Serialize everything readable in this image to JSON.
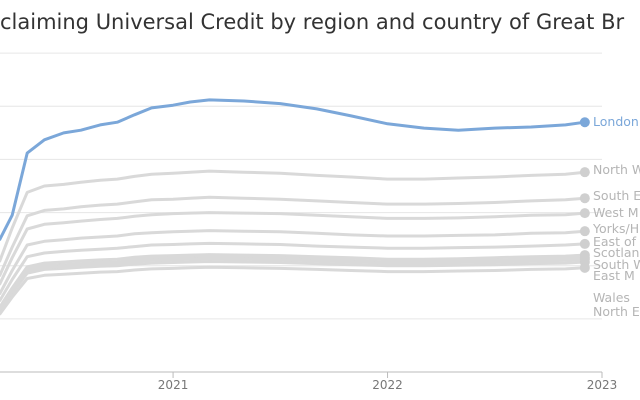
{
  "chart_data": {
    "type": "line",
    "title": "claiming Universal Credit by region and country of Great Br",
    "x": [
      2020.19,
      2020.25,
      2020.32,
      2020.4,
      2020.49,
      2020.57,
      2020.66,
      2020.74,
      2020.82,
      2020.9,
      2021.0,
      2021.08,
      2021.17,
      2021.33,
      2021.5,
      2021.67,
      2021.83,
      2022.0,
      2022.17,
      2022.33,
      2022.5,
      2022.67,
      2022.83,
      2022.92
    ],
    "xlim": [
      2020.193,
      2023
    ],
    "xticks": [
      2021,
      2022,
      2023
    ],
    "ylim": [
      0,
      7
    ],
    "yticks": [
      0,
      1,
      2,
      3,
      4,
      5,
      6
    ],
    "grid": true,
    "series": [
      {
        "name": "North W",
        "color": "#d9d9d9",
        "values": [
          2.07,
          2.71,
          3.38,
          3.5,
          3.53,
          3.57,
          3.61,
          3.63,
          3.68,
          3.72,
          3.74,
          3.76,
          3.78,
          3.76,
          3.74,
          3.7,
          3.67,
          3.63,
          3.63,
          3.65,
          3.67,
          3.7,
          3.72,
          3.76
        ]
      },
      {
        "name": "South E",
        "color": "#d9d9d9",
        "values": [
          1.8,
          2.35,
          2.94,
          3.04,
          3.07,
          3.11,
          3.14,
          3.16,
          3.2,
          3.24,
          3.25,
          3.27,
          3.29,
          3.27,
          3.25,
          3.22,
          3.19,
          3.16,
          3.16,
          3.17,
          3.19,
          3.22,
          3.24,
          3.27
        ]
      },
      {
        "name": "West M",
        "color": "#d9d9d9",
        "values": [
          1.64,
          2.15,
          2.69,
          2.78,
          2.81,
          2.84,
          2.87,
          2.89,
          2.93,
          2.96,
          2.98,
          2.99,
          3.0,
          2.99,
          2.98,
          2.95,
          2.92,
          2.89,
          2.89,
          2.9,
          2.92,
          2.95,
          2.96,
          2.99
        ]
      },
      {
        "name": "Yorks/H",
        "color": "#d9d9d9",
        "values": [
          1.46,
          1.91,
          2.39,
          2.46,
          2.49,
          2.52,
          2.54,
          2.56,
          2.6,
          2.62,
          2.64,
          2.65,
          2.66,
          2.65,
          2.64,
          2.61,
          2.58,
          2.56,
          2.56,
          2.57,
          2.58,
          2.61,
          2.62,
          2.65
        ]
      },
      {
        "name": "East of",
        "color": "#d9d9d9",
        "values": [
          1.33,
          1.74,
          2.17,
          2.24,
          2.27,
          2.29,
          2.31,
          2.33,
          2.36,
          2.39,
          2.4,
          2.41,
          2.42,
          2.41,
          2.4,
          2.37,
          2.35,
          2.33,
          2.33,
          2.34,
          2.35,
          2.37,
          2.39,
          2.41
        ]
      },
      {
        "name": "Scotlan",
        "color": "#d9d9d9",
        "values": [
          1.21,
          1.58,
          1.98,
          2.05,
          2.07,
          2.09,
          2.11,
          2.12,
          2.16,
          2.18,
          2.19,
          2.2,
          2.21,
          2.2,
          2.19,
          2.17,
          2.15,
          2.12,
          2.12,
          2.13,
          2.15,
          2.17,
          2.18,
          2.2
        ]
      },
      {
        "name": "South W",
        "color": "#d9d9d9",
        "values": [
          1.18,
          1.55,
          1.94,
          2.0,
          2.02,
          2.04,
          2.06,
          2.07,
          2.11,
          2.13,
          2.14,
          2.15,
          2.16,
          2.15,
          2.14,
          2.12,
          2.1,
          2.07,
          2.07,
          2.09,
          2.1,
          2.12,
          2.13,
          2.15
        ]
      },
      {
        "name": "East M",
        "color": "#d9d9d9",
        "values": [
          1.14,
          1.49,
          1.86,
          1.93,
          1.95,
          1.97,
          1.99,
          2.0,
          2.03,
          2.05,
          2.06,
          2.07,
          2.08,
          2.07,
          2.06,
          2.04,
          2.02,
          2.0,
          2.0,
          2.01,
          2.02,
          2.04,
          2.05,
          2.07
        ]
      },
      {
        "name": "Wales",
        "color": "#d9d9d9",
        "values": [
          1.08,
          1.41,
          1.76,
          1.82,
          1.84,
          1.86,
          1.88,
          1.89,
          1.92,
          1.94,
          1.95,
          1.96,
          1.97,
          1.96,
          1.95,
          1.93,
          1.91,
          1.89,
          1.89,
          1.9,
          1.91,
          1.93,
          1.94,
          1.96
        ]
      },
      {
        "name": "North E",
        "color": "#d9d9d9",
        "values": [
          1.17,
          1.53,
          1.91,
          1.97,
          1.99,
          2.01,
          2.04,
          2.05,
          2.08,
          2.1,
          2.11,
          2.12,
          2.13,
          2.12,
          2.11,
          2.09,
          2.07,
          2.05,
          2.05,
          2.06,
          2.07,
          2.09,
          2.1,
          2.12
        ]
      },
      {
        "name": "London",
        "color": "#7ba7d9",
        "values": [
          2.48,
          2.95,
          4.12,
          4.37,
          4.5,
          4.55,
          4.65,
          4.7,
          4.84,
          4.97,
          5.02,
          5.08,
          5.12,
          5.1,
          5.05,
          4.95,
          4.82,
          4.67,
          4.59,
          4.55,
          4.59,
          4.61,
          4.65,
          4.7
        ]
      }
    ]
  }
}
